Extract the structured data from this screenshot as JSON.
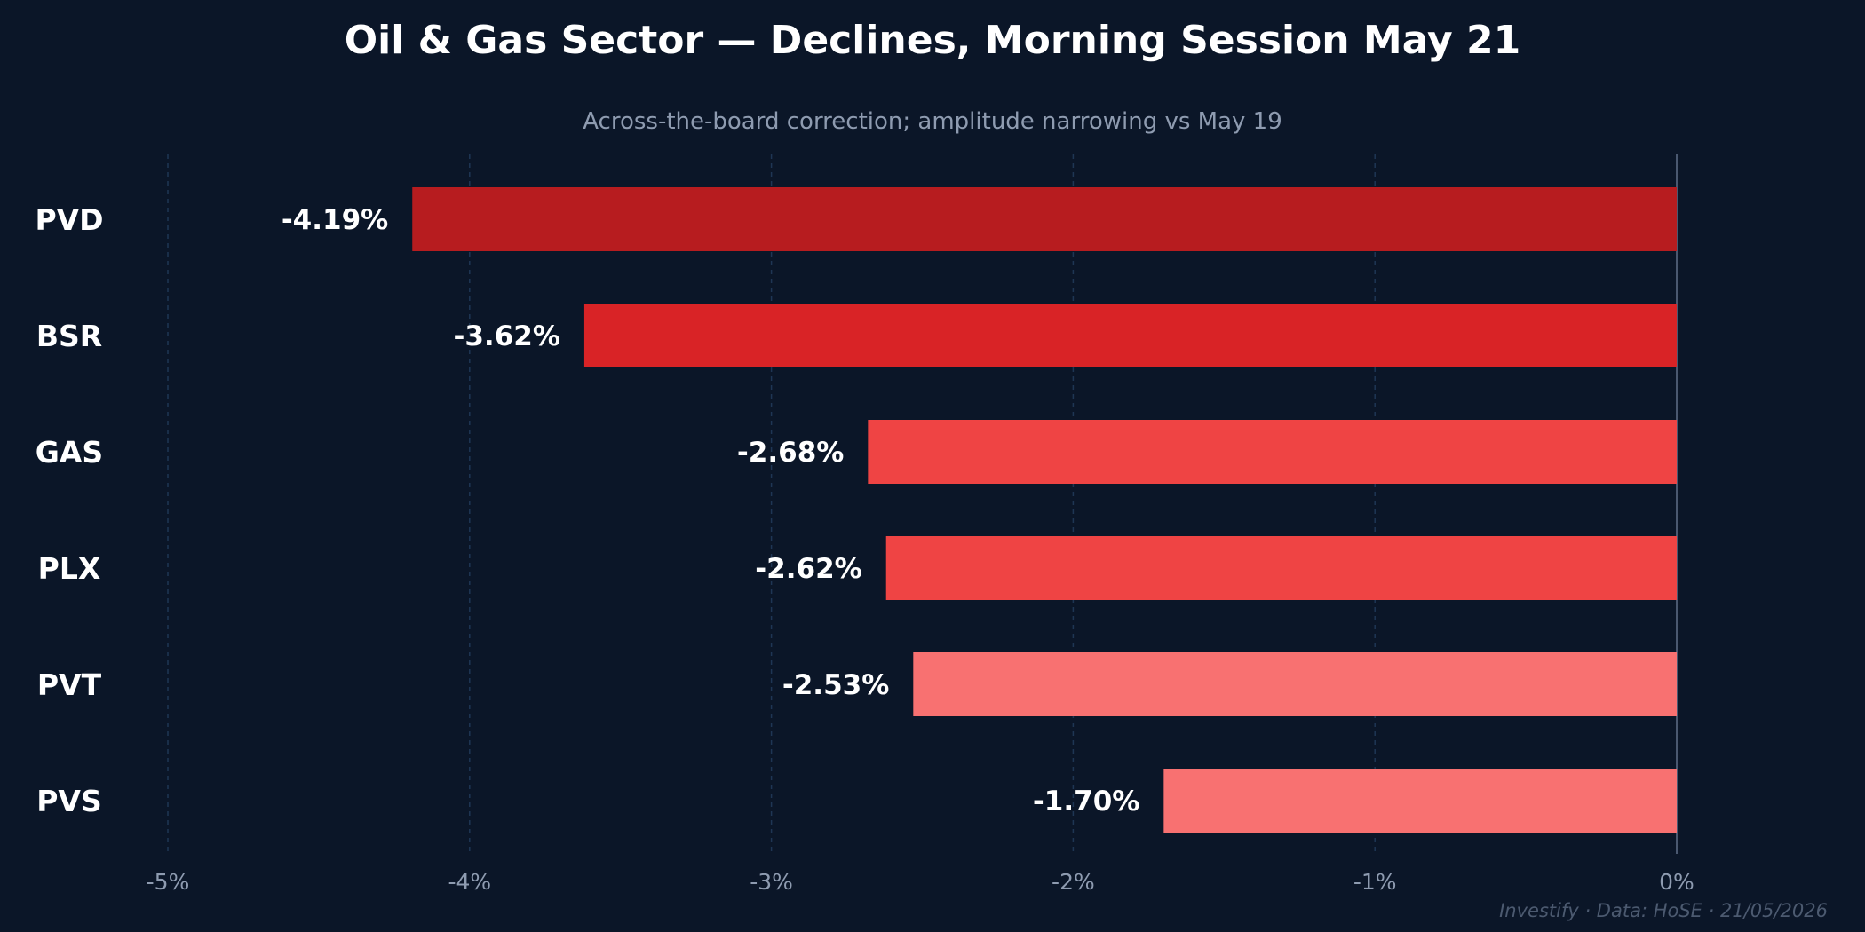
{
  "chart_data": {
    "type": "bar",
    "orientation": "horizontal",
    "title": "Oil & Gas Sector — Declines, Morning Session May 21",
    "subtitle": "Across-the-board correction; amplitude narrowing vs May 19",
    "categories": [
      "PVD",
      "BSR",
      "GAS",
      "PLX",
      "PVT",
      "PVS"
    ],
    "values": [
      -4.19,
      -3.62,
      -2.68,
      -2.62,
      -2.53,
      -1.7
    ],
    "value_labels": [
      "-4.19%",
      "-3.62%",
      "-2.68%",
      "-2.62%",
      "-2.53%",
      "-1.70%"
    ],
    "bar_colors": [
      "#b71c1f",
      "#d92326",
      "#ef4444",
      "#ef4444",
      "#f87171",
      "#f87171"
    ],
    "xlim": [
      -5,
      0
    ],
    "xticks": [
      -5,
      -4,
      -3,
      -2,
      -1,
      0
    ],
    "xtick_labels": [
      "-5%",
      "-4%",
      "-3%",
      "-2%",
      "-1%",
      "0%"
    ],
    "xlabel": "",
    "ylabel": "",
    "grid": "vertical dashed",
    "legend": "none"
  },
  "footer": "Investify · Data: HoSE · 21/05/2026",
  "colors": {
    "background": "#0b1628",
    "grid": "#1e3654",
    "zero_line": "#4a5870"
  }
}
